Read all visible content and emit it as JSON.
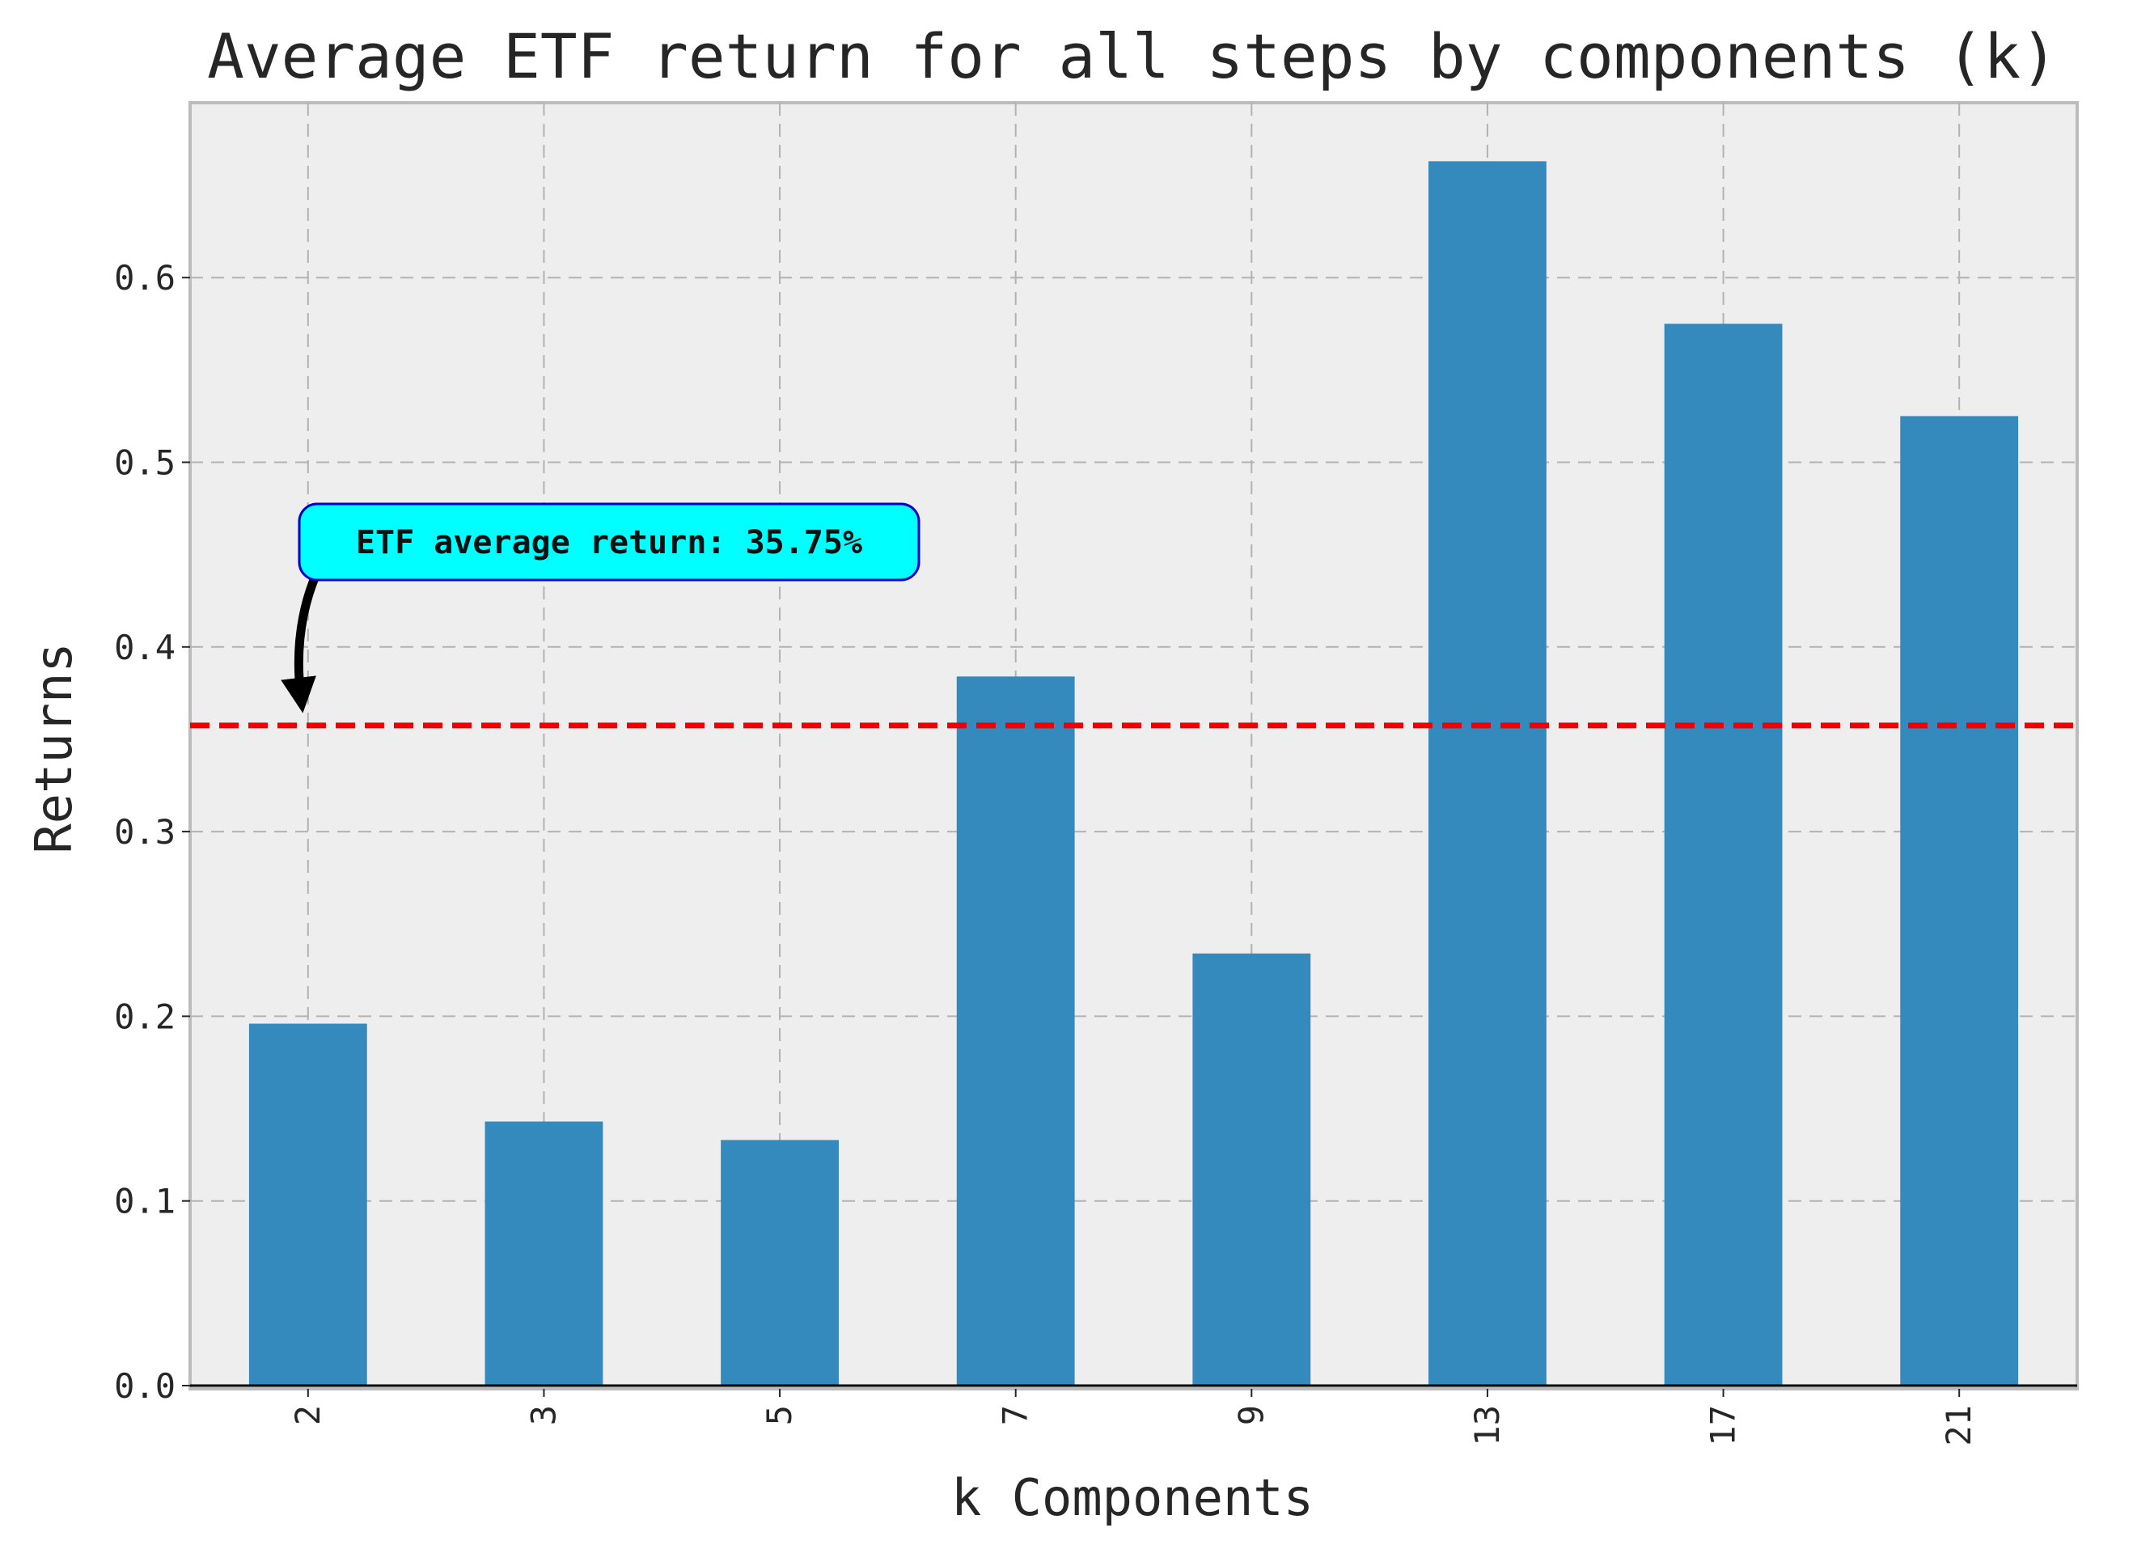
{
  "chart_data": {
    "type": "bar",
    "title": "Average ETF return for all steps by components (k)",
    "xlabel": "k Components",
    "ylabel": "Returns",
    "categories": [
      "2",
      "3",
      "5",
      "7",
      "9",
      "13",
      "17",
      "21"
    ],
    "values": [
      0.196,
      0.143,
      0.133,
      0.384,
      0.234,
      0.663,
      0.575,
      0.525
    ],
    "ylim": [
      0.0,
      0.695
    ],
    "yticks": [
      "0.0",
      "0.1",
      "0.2",
      "0.3",
      "0.4",
      "0.5",
      "0.6"
    ],
    "reference_line": {
      "value": 0.3575,
      "color": "#ee0000",
      "style": "dashed"
    },
    "annotation": {
      "text": "ETF average return: 35.75%",
      "points_to_category": "2",
      "points_to_value": 0.3575,
      "box_color": "#00ffff",
      "border_color": "#0000cc"
    },
    "bar_color": "#348abd",
    "plot_background": "#eeeeee",
    "grid": true,
    "tick_label_rotation_x": "vertical"
  }
}
